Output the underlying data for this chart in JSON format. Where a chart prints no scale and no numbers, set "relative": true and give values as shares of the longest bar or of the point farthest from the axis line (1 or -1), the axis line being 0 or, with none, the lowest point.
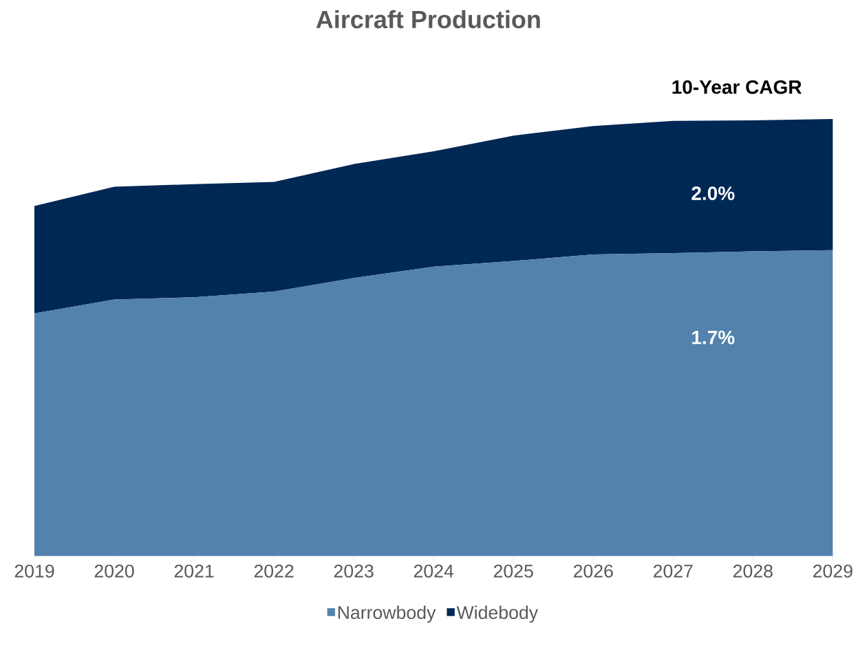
{
  "chart_data": {
    "type": "area",
    "title": "Aircraft Production",
    "stacked": true,
    "relative": true,
    "legend": "bottom",
    "categories": [
      "2019",
      "2020",
      "2021",
      "2022",
      "2023",
      "2024",
      "2025",
      "2026",
      "2027",
      "2028",
      "2029"
    ],
    "series": [
      {
        "name": "Narrowbody",
        "color": "#5282ad",
        "values": [
          0.555,
          0.587,
          0.592,
          0.605,
          0.636,
          0.662,
          0.675,
          0.69,
          0.693,
          0.697,
          0.7
        ]
      },
      {
        "name": "Widebody",
        "color": "#002855",
        "values": [
          0.246,
          0.258,
          0.259,
          0.251,
          0.261,
          0.264,
          0.287,
          0.294,
          0.303,
          0.3,
          0.3
        ]
      }
    ],
    "annotations": [
      "10-Year CAGR",
      "2.0%",
      "1.7%"
    ]
  }
}
